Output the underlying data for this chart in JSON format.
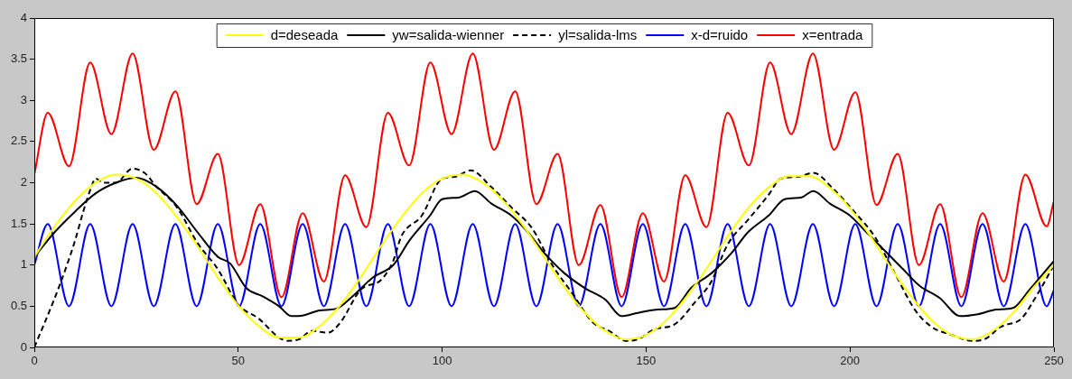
{
  "chart_data": {
    "type": "line",
    "legend": "top",
    "marker": "none",
    "xlim": [
      0,
      250
    ],
    "ylim": [
      0,
      4
    ],
    "xticks": [
      0,
      50,
      100,
      150,
      200,
      250
    ],
    "yticks": [
      0,
      0.5,
      1,
      1.5,
      2,
      2.5,
      3,
      3.5,
      4
    ],
    "series": [
      {
        "name": "d=deseada",
        "color": "#ffff00",
        "line_style": "solid",
        "x": [
          0,
          5,
          10,
          15,
          20,
          25,
          30,
          35,
          40,
          45,
          50,
          55,
          60,
          65,
          70,
          75,
          80,
          85,
          90,
          95,
          100,
          105,
          110,
          115,
          120,
          125,
          130,
          135,
          140,
          145,
          150,
          155,
          160,
          165,
          170,
          175,
          180,
          185,
          190,
          195,
          200,
          205,
          210,
          215,
          220,
          225,
          230,
          235,
          240,
          245,
          250
        ],
        "values": [
          1.1,
          1.47,
          1.78,
          2.0,
          2.1,
          2.05,
          1.87,
          1.58,
          1.23,
          0.85,
          0.51,
          0.26,
          0.12,
          0.12,
          0.26,
          0.51,
          0.85,
          1.23,
          1.58,
          1.87,
          2.05,
          2.1,
          2.0,
          1.78,
          1.47,
          1.1,
          0.73,
          0.42,
          0.2,
          0.1,
          0.15,
          0.33,
          0.62,
          0.97,
          1.35,
          1.69,
          1.94,
          2.08,
          2.08,
          1.94,
          1.69,
          1.35,
          0.97,
          0.62,
          0.33,
          0.15,
          0.1,
          0.2,
          0.42,
          0.73,
          1.0
        ]
      },
      {
        "name": "yw=salida-wienner",
        "color": "#000000",
        "line_style": "solid",
        "x": [
          0,
          5,
          10,
          15,
          20,
          25,
          30,
          35,
          40,
          45,
          48,
          52,
          56,
          60,
          63,
          66,
          70,
          74,
          78,
          83,
          88,
          92,
          97,
          100,
          104,
          108,
          112,
          117,
          121,
          125,
          130,
          135,
          140,
          144,
          148,
          153,
          157,
          161,
          166,
          171,
          175,
          180,
          184,
          188,
          191,
          195,
          200,
          204,
          209,
          213,
          217,
          222,
          227,
          231,
          236,
          240,
          244,
          250
        ],
        "values": [
          1.1,
          1.4,
          1.65,
          1.87,
          2.0,
          2.06,
          1.95,
          1.72,
          1.4,
          1.1,
          1.02,
          0.72,
          0.62,
          0.5,
          0.38,
          0.39,
          0.45,
          0.47,
          0.62,
          0.85,
          1.0,
          1.3,
          1.6,
          1.8,
          1.82,
          1.9,
          1.75,
          1.6,
          1.4,
          1.15,
          0.9,
          0.72,
          0.58,
          0.38,
          0.42,
          0.46,
          0.48,
          0.72,
          0.9,
          1.15,
          1.4,
          1.6,
          1.8,
          1.82,
          1.9,
          1.75,
          1.6,
          1.4,
          1.15,
          0.95,
          0.75,
          0.6,
          0.38,
          0.4,
          0.46,
          0.48,
          0.7,
          1.05
        ]
      },
      {
        "name": "yl=salida-lms",
        "color": "#000000",
        "line_style": "dashed",
        "x": [
          0,
          5,
          8,
          10,
          12,
          14,
          15,
          17,
          20,
          24,
          27,
          30,
          35,
          40,
          45,
          50,
          55,
          60,
          62,
          65,
          68,
          72,
          75,
          80,
          85,
          88,
          90,
          95,
          100,
          103,
          107,
          112,
          117,
          122,
          127,
          132,
          137,
          141,
          145,
          148,
          152,
          157,
          162,
          166,
          170,
          175,
          180,
          183,
          187,
          191,
          196,
          201,
          206,
          211,
          216,
          220,
          225,
          230,
          233,
          237,
          242,
          246,
          250
        ],
        "values": [
          0,
          0.6,
          1.0,
          1.3,
          1.65,
          1.95,
          2.05,
          2.0,
          2.0,
          2.17,
          2.12,
          1.95,
          1.7,
          1.27,
          0.95,
          0.52,
          0.35,
          0.12,
          0.08,
          0.1,
          0.2,
          0.18,
          0.3,
          0.7,
          0.82,
          1.05,
          1.35,
          1.6,
          2.05,
          2.07,
          2.15,
          1.95,
          1.7,
          1.45,
          1.0,
          0.65,
          0.3,
          0.2,
          0.08,
          0.1,
          0.22,
          0.28,
          0.55,
          0.8,
          1.25,
          1.55,
          1.85,
          2.05,
          2.07,
          2.12,
          1.92,
          1.65,
          1.35,
          0.9,
          0.45,
          0.25,
          0.15,
          0.08,
          0.1,
          0.25,
          0.35,
          0.65,
          1.0
        ]
      },
      {
        "name": "x-d=ruido",
        "color": "#0000ff",
        "line_style": "solid",
        "x": [
          0,
          3.3,
          8.5,
          13.7,
          18.9,
          24.1,
          29.3,
          34.6,
          39.8,
          45.0,
          50.2,
          55.4,
          60.6,
          65.8,
          71.0,
          76.2,
          81.4,
          86.7,
          91.9,
          97.1,
          102.3,
          107.5,
          112.7,
          117.9,
          123.1,
          128.3,
          133.5,
          138.8,
          144.0,
          149.2,
          154.4,
          159.6,
          164.8,
          170.0,
          175.2,
          180.4,
          185.6,
          190.9,
          196.1,
          201.3,
          206.5,
          211.7,
          216.9,
          222.1,
          227.3,
          232.5,
          237.7,
          243.0,
          248.2,
          250
        ],
        "values": [
          1.0,
          1.5,
          0.5,
          1.5,
          0.5,
          1.5,
          0.5,
          1.5,
          0.5,
          1.5,
          0.5,
          1.5,
          0.5,
          1.5,
          0.5,
          1.5,
          0.5,
          1.5,
          0.5,
          1.5,
          0.5,
          1.5,
          0.5,
          1.5,
          0.5,
          1.5,
          0.5,
          1.5,
          0.5,
          1.5,
          0.5,
          1.5,
          0.5,
          1.5,
          0.5,
          1.5,
          0.5,
          1.5,
          0.5,
          1.5,
          0.5,
          1.5,
          0.5,
          1.5,
          0.5,
          1.5,
          0.5,
          1.5,
          0.5,
          0.7
        ]
      },
      {
        "name": "x=entrada",
        "color": "#ff0000",
        "line_style": "solid",
        "x": [
          0,
          3.3,
          8.5,
          13.7,
          18.9,
          24.1,
          29.3,
          34.6,
          39.8,
          45.0,
          50.2,
          55.4,
          60.6,
          65.8,
          71.0,
          76.2,
          81.4,
          86.7,
          91.9,
          97.1,
          102.3,
          107.5,
          112.7,
          117.9,
          123.1,
          128.3,
          133.5,
          138.8,
          144.0,
          149.2,
          154.4,
          159.6,
          164.8,
          170.0,
          175.2,
          180.4,
          185.6,
          190.9,
          196.1,
          201.3,
          206.5,
          211.7,
          216.9,
          222.1,
          227.3,
          232.5,
          237.7,
          243.0,
          248.2,
          250
        ],
        "values": [
          2.1,
          2.85,
          2.2,
          3.46,
          2.59,
          3.57,
          2.4,
          3.11,
          1.74,
          2.35,
          1.0,
          1.74,
          0.61,
          1.63,
          0.8,
          2.09,
          1.46,
          2.85,
          2.21,
          3.46,
          2.59,
          3.57,
          2.4,
          3.11,
          1.74,
          2.35,
          1.0,
          1.73,
          0.61,
          1.63,
          0.8,
          2.09,
          1.46,
          2.85,
          2.21,
          3.46,
          2.59,
          3.57,
          2.4,
          3.1,
          1.73,
          2.35,
          1.0,
          1.74,
          0.61,
          1.63,
          0.8,
          2.1,
          1.47,
          1.78
        ]
      }
    ]
  }
}
